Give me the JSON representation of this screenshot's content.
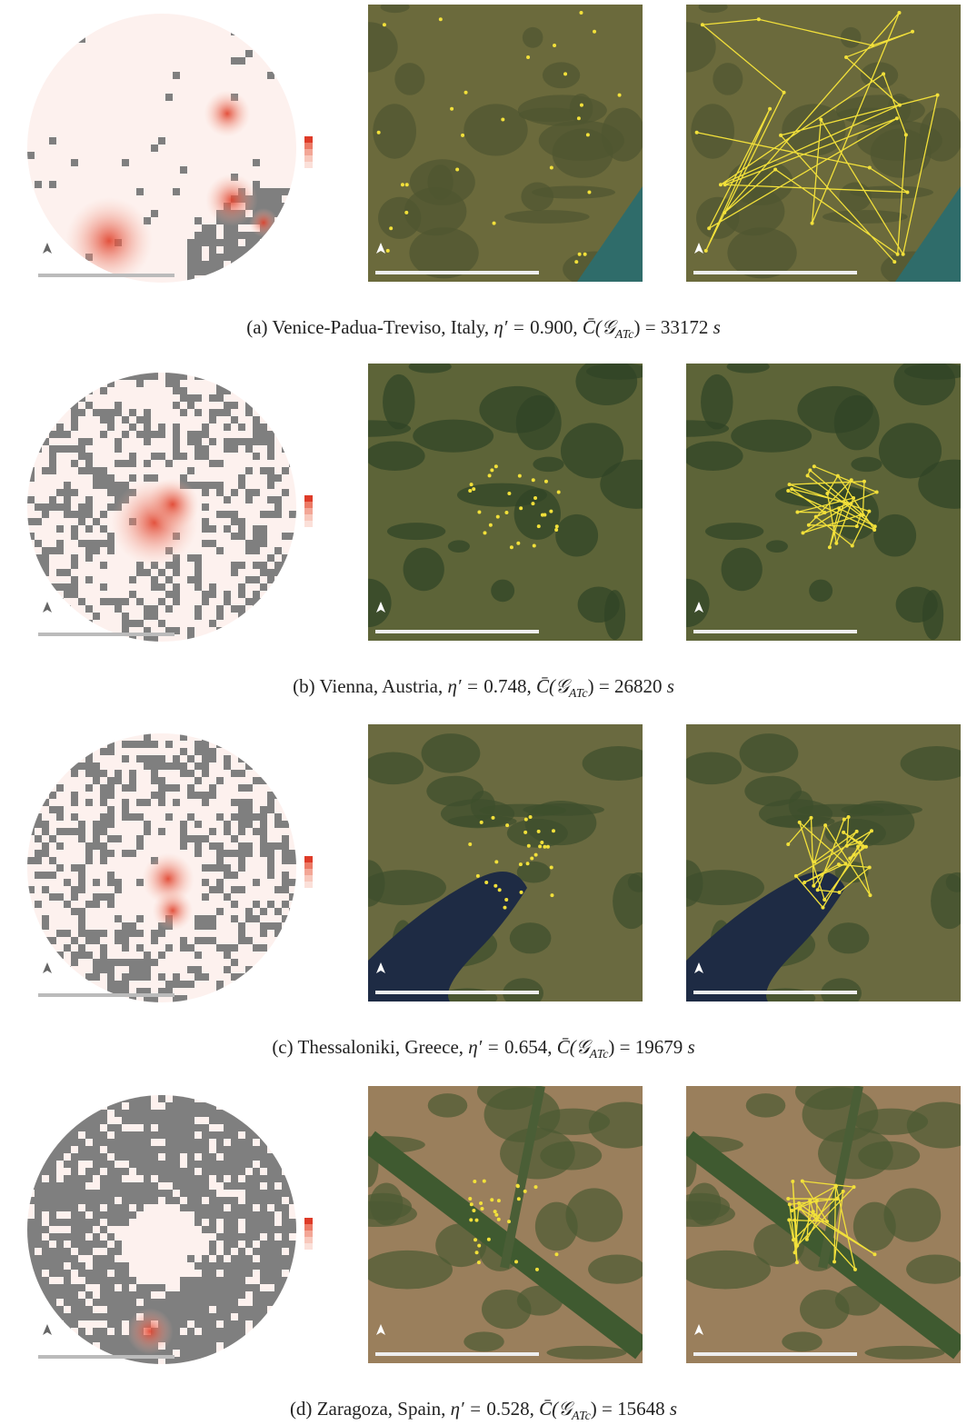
{
  "figure": {
    "panels": [
      {
        "label": "(a)",
        "place": "Venice-Padua-Treviso, Italy,",
        "eta_label": "η′ =",
        "eta": "0.900,",
        "cost_func": "C̄(𝒢",
        "cost_sub": "ATc",
        "cost_close": ") =",
        "cost": "33172",
        "unit": "s"
      },
      {
        "label": "(b)",
        "place": "Vienna, Austria,",
        "eta_label": "η′ =",
        "eta": "0.748,",
        "cost_func": "C̄(𝒢",
        "cost_sub": "ATc",
        "cost_close": ") =",
        "cost": "26820",
        "unit": "s"
      },
      {
        "label": "(c)",
        "place": "Thessaloniki, Greece,",
        "eta_label": "η′ =",
        "eta": "0.654,",
        "cost_func": "C̄(𝒢",
        "cost_sub": "ATc",
        "cost_close": ") =",
        "cost": "19679",
        "unit": "s"
      },
      {
        "label": "(d)",
        "place": "Zaragoza, Spain,",
        "eta_label": "η′ =",
        "eta": "0.528,",
        "cost_func": "C̄(𝒢",
        "cost_sub": "ATc",
        "cost_close": ") =",
        "cost": "15648",
        "unit": "s"
      }
    ]
  }
}
